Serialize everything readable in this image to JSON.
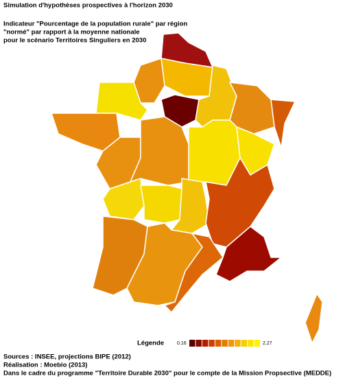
{
  "header": {
    "title": "Simulation d'hypothèses prospectives à l'horizon 2030",
    "subtitle": [
      "Indicateur \"Pourcentage de la population rurale\" par région",
      "\"normé\" par rapport à la moyenne nationale",
      "pour le scénario Territoires Singuliers en 2030"
    ]
  },
  "legend": {
    "label": "Légende",
    "min": 0.16,
    "max": 2.27,
    "colors": [
      "#5c0000",
      "#8a0a00",
      "#b02000",
      "#cc4000",
      "#d96005",
      "#e37d0a",
      "#eb980e",
      "#f2b20c",
      "#f7cc08",
      "#fae304",
      "#fff200"
    ]
  },
  "footer": [
    "Sources :  INSEE, projections BIPE (2012)",
    "Réalisation : Moebio (2013)",
    "Dans le cadre du programme \"Territoire Durable 2030\" pour le compte de la Mission Propsective (MEDDE)"
  ]
}
